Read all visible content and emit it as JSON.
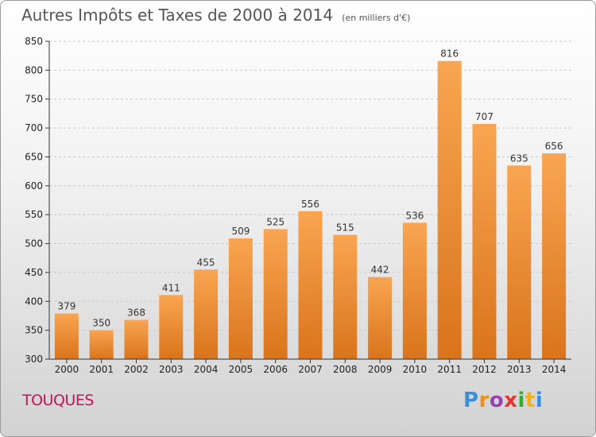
{
  "chart_data": {
    "type": "bar",
    "title": "Autres Impôts et Taxes de 2000 à 2014",
    "subtitle": "(en milliers d'€)",
    "categories": [
      "2000",
      "2001",
      "2002",
      "2003",
      "2004",
      "2005",
      "2006",
      "2007",
      "2008",
      "2009",
      "2010",
      "2011",
      "2012",
      "2013",
      "2014"
    ],
    "values": [
      379,
      350,
      368,
      411,
      455,
      509,
      525,
      556,
      515,
      442,
      536,
      816,
      707,
      635,
      656
    ],
    "ylim": [
      300,
      850
    ],
    "yticks": [
      300,
      350,
      400,
      450,
      500,
      550,
      600,
      650,
      700,
      750,
      800,
      850
    ],
    "grid": "horizontal dashed",
    "legend": "none",
    "colors": {
      "bar_top": "#f9a552",
      "bar_bottom": "#d9741b",
      "grid": "#c8c8c8"
    }
  },
  "footer": {
    "place": "TOUQUES",
    "logo": [
      {
        "char": "P",
        "color": "#3b8fd6"
      },
      {
        "char": "r",
        "color": "#f28c1a"
      },
      {
        "char": "o",
        "color": "#9b3fb5"
      },
      {
        "char": "x",
        "color": "#e8342e"
      },
      {
        "char": "i",
        "color": "#3aaa35"
      },
      {
        "char": "t",
        "color": "#f2b01e"
      },
      {
        "char": "i",
        "color": "#3b8fd6"
      }
    ]
  }
}
